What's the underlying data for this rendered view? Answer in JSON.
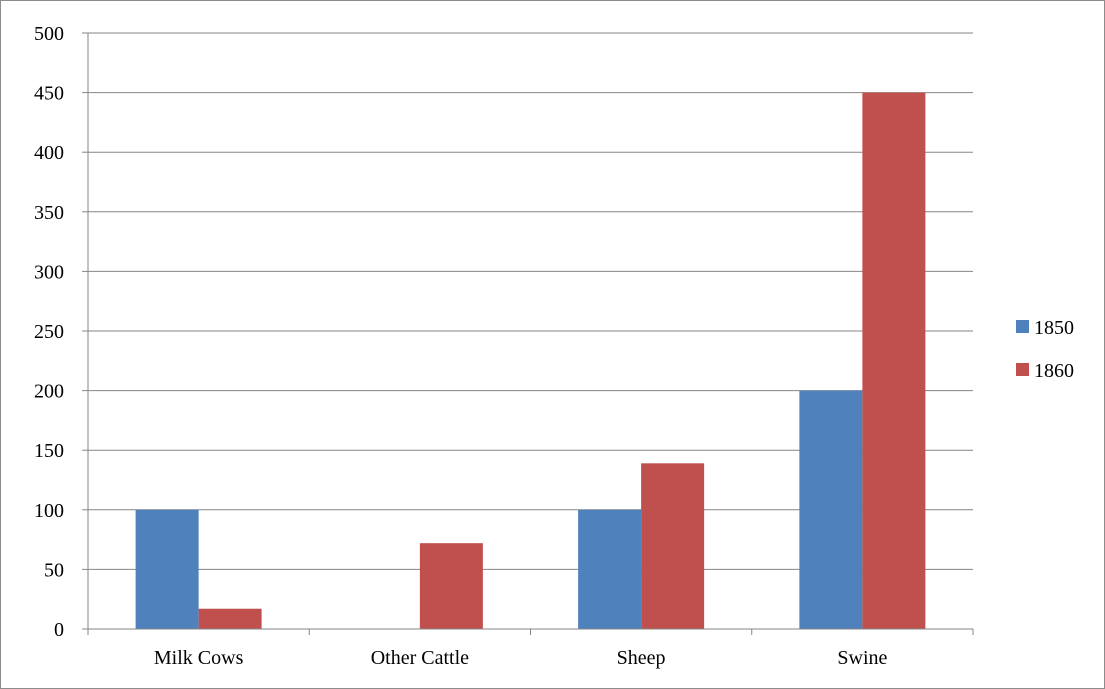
{
  "chart_data": {
    "type": "bar",
    "title": "",
    "xlabel": "",
    "ylabel": "",
    "categories": [
      "Milk Cows",
      "Other Cattle",
      "Sheep",
      "Swine"
    ],
    "series": [
      {
        "name": "1850",
        "values": [
          100,
          0,
          100,
          200
        ],
        "color": "#4f81bd"
      },
      {
        "name": "1860",
        "values": [
          17,
          72,
          139,
          450
        ],
        "color": "#c0504d"
      }
    ],
    "ylim": [
      0,
      500
    ],
    "yticks": [
      "0",
      "50",
      "100",
      "150",
      "200",
      "250",
      "300",
      "350",
      "400",
      "450",
      "500"
    ],
    "grid": true,
    "legend_position": "right"
  }
}
